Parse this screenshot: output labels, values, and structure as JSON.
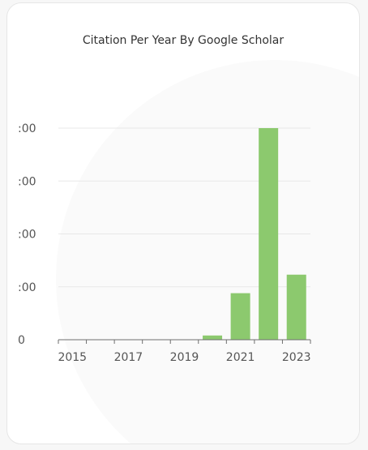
{
  "chart_data": {
    "type": "bar",
    "title": "Citation Per Year By Google Scholar",
    "xlabel": "",
    "ylabel": "",
    "categories": [
      "2015",
      "2016",
      "2017",
      "2018",
      "2019",
      "2020",
      "2021",
      "2022",
      "2023"
    ],
    "values": [
      0,
      0,
      0,
      0,
      0,
      8,
      88,
      400,
      123
    ],
    "ylim": [
      0,
      400
    ],
    "yticks": [
      0,
      100,
      200,
      300,
      400
    ],
    "ytick_labels": [
      "0",
      ":00",
      ":00",
      ":00",
      ":00"
    ],
    "xtick_labels": [
      "2015",
      "2017",
      "2019",
      "2021",
      "2023"
    ],
    "grid": true,
    "bar_color": "#8cc96e",
    "legend": "none"
  }
}
